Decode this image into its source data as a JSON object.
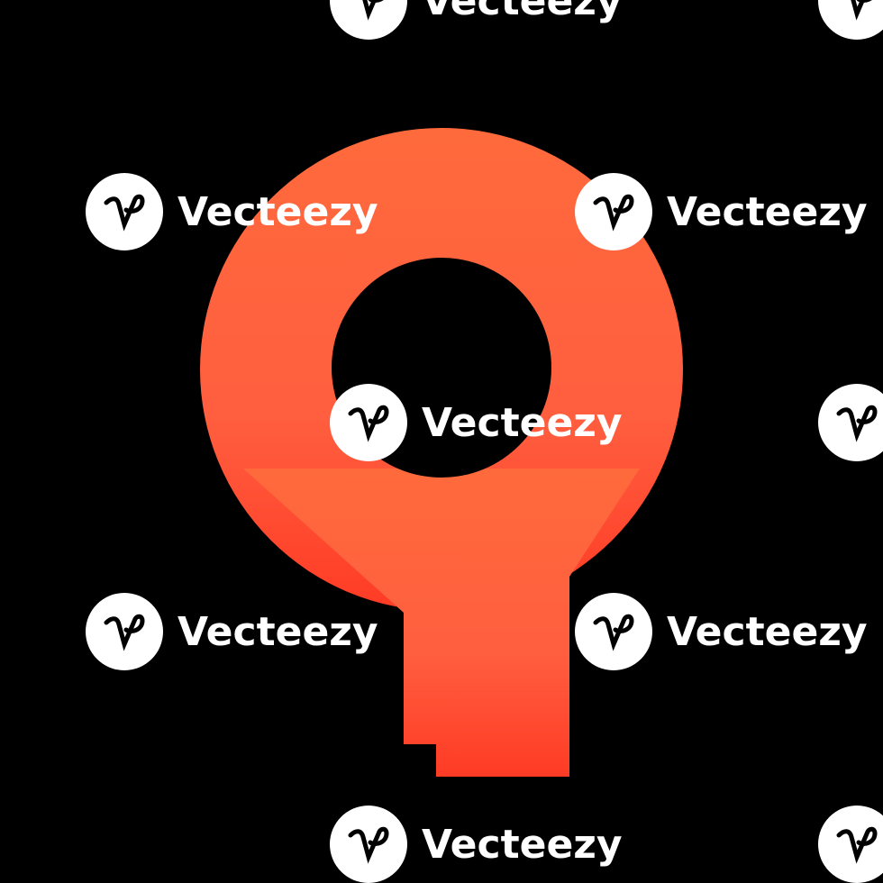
{
  "background_color": "#000000",
  "pin": {
    "icon": "map-pin-icon",
    "color": "#ff5f3f",
    "shadow_color": "#ff3b1f"
  },
  "watermark": {
    "brand": "Vecteezy",
    "logo_icon": "vecteezy-logo-icon",
    "logo_bg": "#ffffff",
    "text_color": "#ffffff"
  }
}
